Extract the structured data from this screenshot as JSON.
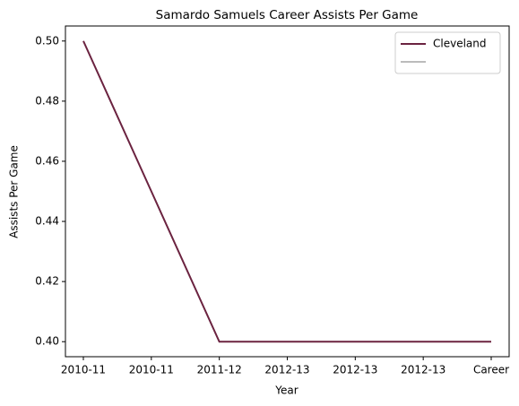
{
  "chart_data": {
    "type": "line",
    "title": "Samardo Samuels Career Assists Per Game",
    "x_label": "Year",
    "y_label": "Assists Per Game",
    "categories": [
      "2010-11",
      "2010-11",
      "2011-12",
      "2012-13",
      "2012-13",
      "2012-13",
      "Career"
    ],
    "series": [
      {
        "name": "Cleveland",
        "color": "#6b2340",
        "values": [
          0.5,
          0.45,
          0.4,
          0.4,
          0.4,
          0.4,
          0.4
        ]
      },
      {
        "color": "#bbbbbb",
        "values": [
          null,
          null,
          null,
          null,
          null,
          null,
          null
        ]
      }
    ],
    "ylim": [
      0.395,
      0.505
    ],
    "yticks": [
      {
        "value": 0.4,
        "label": "0.40"
      },
      0.42,
      0.44,
      0.46,
      0.48,
      {
        "value": 0.5,
        "label": "0.50"
      }
    ],
    "legend": "upper right",
    "grid": false
  }
}
